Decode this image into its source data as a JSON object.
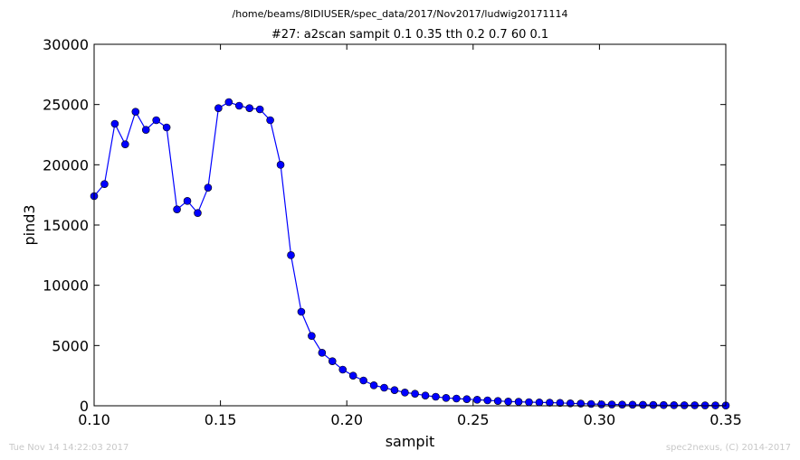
{
  "figure": {
    "suptitle": "/home/beams/8IDIUSER/spec_data/2017/Nov2017/ludwig20171114",
    "footer_left": "Tue Nov 14 14:22:03 2017",
    "footer_right": "spec2nexus, (C) 2014-2017"
  },
  "chart_data": {
    "type": "line",
    "title": "#27: a2scan  sampit 0.1 0.35  tth 0.2 0.7  60 0.1",
    "xlabel": "sampit",
    "ylabel": "pind3",
    "xlim": [
      0.1,
      0.35
    ],
    "ylim": [
      0,
      30000
    ],
    "xticks": [
      0.1,
      0.15,
      0.2,
      0.25,
      0.3,
      0.35
    ],
    "xtick_labels": [
      "0.10",
      "0.15",
      "0.20",
      "0.25",
      "0.30",
      "0.35"
    ],
    "yticks": [
      0,
      5000,
      10000,
      15000,
      20000,
      25000,
      30000
    ],
    "ytick_labels": [
      "0",
      "5000",
      "10000",
      "15000",
      "20000",
      "25000",
      "30000"
    ],
    "grid": false,
    "series": [
      {
        "color": "#0000ff",
        "marker": "circle",
        "x": [
          0.1,
          0.1041,
          0.1082,
          0.1123,
          0.1164,
          0.1205,
          0.1246,
          0.1287,
          0.1328,
          0.1369,
          0.141,
          0.1451,
          0.1492,
          0.1533,
          0.1574,
          0.1615,
          0.1656,
          0.1697,
          0.1738,
          0.1779,
          0.182,
          0.1861,
          0.1902,
          0.1943,
          0.1984,
          0.2025,
          0.2066,
          0.2107,
          0.2148,
          0.2189,
          0.223,
          0.227,
          0.2311,
          0.2352,
          0.2393,
          0.2434,
          0.2475,
          0.2516,
          0.2557,
          0.2598,
          0.2639,
          0.268,
          0.2721,
          0.2762,
          0.2803,
          0.2844,
          0.2885,
          0.2926,
          0.2967,
          0.3008,
          0.3049,
          0.309,
          0.3131,
          0.3172,
          0.3213,
          0.3254,
          0.3295,
          0.3336,
          0.3377,
          0.3418,
          0.3459,
          0.35
        ],
        "y": [
          17400,
          18400,
          23400,
          21700,
          24400,
          22900,
          23700,
          23100,
          16300,
          17000,
          16000,
          18100,
          24700,
          25200,
          24900,
          24700,
          24600,
          23700,
          20000,
          12500,
          7800,
          5800,
          4400,
          3700,
          3000,
          2500,
          2100,
          1700,
          1500,
          1300,
          1100,
          1000,
          850,
          750,
          650,
          600,
          550,
          500,
          450,
          400,
          350,
          330,
          300,
          280,
          260,
          240,
          200,
          180,
          150,
          120,
          110,
          100,
          90,
          80,
          70,
          60,
          50,
          45,
          40,
          35,
          30,
          25
        ]
      }
    ]
  }
}
